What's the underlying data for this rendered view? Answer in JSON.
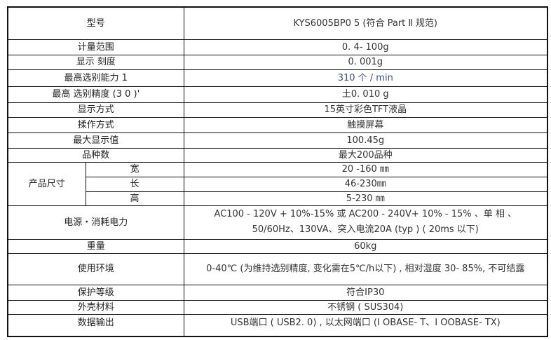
{
  "spec_table": {
    "model": {
      "label": "型号",
      "value": "KYS6005BP0 5 (符合  Part Ⅱ 规范)"
    },
    "rows": [
      {
        "label": "计量范围",
        "value": "0. 4- 100g"
      },
      {
        "label": "显示 刻度",
        "value": "0. 001g"
      },
      {
        "label": "最高选别能力 1",
        "value": "310  个 / min"
      },
      {
        "label": "最高 选别精度 (3 0 )'",
        "value": "土0. 010 g"
      },
      {
        "label": "显示方式",
        "value": "15英寸彩色TFT液晶"
      },
      {
        "label": "揉作方式",
        "value": "触摸屏幕"
      },
      {
        "label": "最大显示值",
        "value": "100.45g"
      },
      {
        "label": "品种数",
        "value": "最大200品种"
      }
    ],
    "dimensions": {
      "label": "产品尺寸",
      "items": [
        {
          "label": "宽",
          "value": "20 -160 ㎜"
        },
        {
          "label": "长",
          "value": "46-230㎜"
        },
        {
          "label": "高",
          "value": "5-230 ㎜"
        }
      ]
    },
    "power": {
      "label": "电源・消耗电力",
      "line1": "AC100 - 120V + 10%-15% 或 AC200 - 240V+ 10% - 15% 、单 相 、",
      "line2": "50/60Hz、130VA、突入电流20A (typ ) ( 20ms 以下)"
    },
    "rows2": [
      {
        "label": "重量",
        "value": "60kg"
      },
      {
        "label": "使用环境",
        "value": "0-40℃ (为维持选别精度, 变化需在5℃/h以下) , 相对湿度 30- 85%, 不可结露"
      },
      {
        "label": "保护等级",
        "value": "符合IP30"
      },
      {
        "label": "外壳材料",
        "value": "不锈钢 ( SUS304)"
      },
      {
        "label": "数据输出",
        "value": "USB端口 ( USB2. 0) , 以太网端口 (I OBASE- T、I OOBASE- TX)"
      }
    ]
  }
}
